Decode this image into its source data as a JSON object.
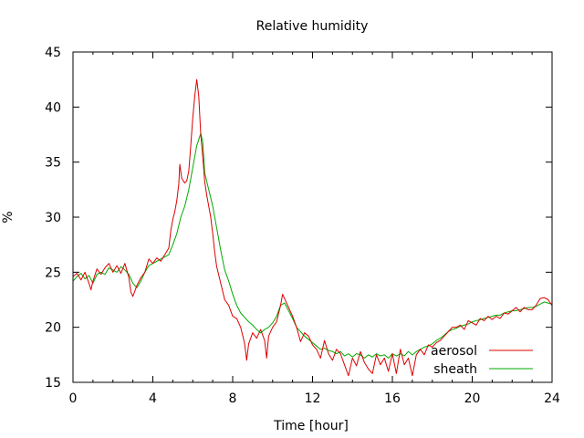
{
  "chart_data": {
    "type": "line",
    "title": "Relative humidity",
    "xlabel": "Time [hour]",
    "ylabel": "%",
    "xlim": [
      0,
      24
    ],
    "ylim": [
      15,
      45
    ],
    "x_ticks": [
      0,
      4,
      8,
      12,
      16,
      20,
      24
    ],
    "y_ticks": [
      15,
      20,
      25,
      30,
      35,
      40,
      45
    ],
    "grid": false,
    "legend_position": "bottom-right",
    "series": [
      {
        "name": "aerosol",
        "color": "#dd0000",
        "points": [
          [
            0.0,
            24.6
          ],
          [
            0.2,
            24.9
          ],
          [
            0.4,
            24.3
          ],
          [
            0.6,
            25.0
          ],
          [
            0.8,
            24.0
          ],
          [
            0.9,
            23.4
          ],
          [
            1.0,
            24.2
          ],
          [
            1.2,
            25.3
          ],
          [
            1.4,
            24.8
          ],
          [
            1.6,
            25.4
          ],
          [
            1.8,
            25.8
          ],
          [
            2.0,
            25.0
          ],
          [
            2.2,
            25.6
          ],
          [
            2.4,
            24.9
          ],
          [
            2.6,
            25.8
          ],
          [
            2.8,
            24.5
          ],
          [
            2.9,
            23.2
          ],
          [
            3.0,
            22.8
          ],
          [
            3.2,
            23.8
          ],
          [
            3.4,
            24.5
          ],
          [
            3.6,
            25.0
          ],
          [
            3.8,
            26.2
          ],
          [
            4.0,
            25.8
          ],
          [
            4.2,
            26.3
          ],
          [
            4.4,
            26.0
          ],
          [
            4.6,
            26.6
          ],
          [
            4.8,
            27.2
          ],
          [
            4.9,
            28.8
          ],
          [
            5.0,
            29.8
          ],
          [
            5.1,
            30.5
          ],
          [
            5.2,
            31.5
          ],
          [
            5.3,
            33.0
          ],
          [
            5.35,
            34.8
          ],
          [
            5.45,
            33.5
          ],
          [
            5.6,
            33.1
          ],
          [
            5.7,
            33.3
          ],
          [
            5.8,
            34.2
          ],
          [
            5.9,
            36.5
          ],
          [
            6.0,
            39.0
          ],
          [
            6.1,
            41.0
          ],
          [
            6.2,
            42.5
          ],
          [
            6.3,
            41.0
          ],
          [
            6.4,
            37.5
          ],
          [
            6.5,
            35.5
          ],
          [
            6.6,
            33.2
          ],
          [
            6.7,
            32.0
          ],
          [
            6.8,
            31.0
          ],
          [
            6.9,
            30.0
          ],
          [
            7.0,
            28.5
          ],
          [
            7.1,
            26.8
          ],
          [
            7.2,
            25.5
          ],
          [
            7.4,
            24.0
          ],
          [
            7.6,
            22.5
          ],
          [
            7.8,
            22.0
          ],
          [
            8.0,
            21.0
          ],
          [
            8.2,
            20.8
          ],
          [
            8.4,
            20.0
          ],
          [
            8.6,
            18.5
          ],
          [
            8.7,
            17.0
          ],
          [
            8.8,
            18.5
          ],
          [
            9.0,
            19.5
          ],
          [
            9.2,
            19.0
          ],
          [
            9.4,
            19.8
          ],
          [
            9.6,
            18.8
          ],
          [
            9.7,
            17.2
          ],
          [
            9.8,
            19.2
          ],
          [
            10.0,
            20.0
          ],
          [
            10.2,
            20.5
          ],
          [
            10.4,
            22.0
          ],
          [
            10.5,
            23.0
          ],
          [
            10.6,
            22.6
          ],
          [
            10.8,
            21.8
          ],
          [
            11.0,
            21.0
          ],
          [
            11.2,
            20.0
          ],
          [
            11.4,
            18.7
          ],
          [
            11.6,
            19.5
          ],
          [
            11.8,
            19.2
          ],
          [
            12.0,
            18.4
          ],
          [
            12.2,
            18.0
          ],
          [
            12.4,
            17.2
          ],
          [
            12.6,
            18.8
          ],
          [
            12.8,
            17.6
          ],
          [
            13.0,
            17.0
          ],
          [
            13.2,
            18.0
          ],
          [
            13.4,
            17.6
          ],
          [
            13.6,
            16.6
          ],
          [
            13.8,
            15.6
          ],
          [
            14.0,
            17.2
          ],
          [
            14.2,
            16.5
          ],
          [
            14.4,
            17.8
          ],
          [
            14.6,
            16.8
          ],
          [
            14.8,
            16.2
          ],
          [
            15.0,
            15.8
          ],
          [
            15.2,
            17.5
          ],
          [
            15.4,
            16.6
          ],
          [
            15.6,
            17.2
          ],
          [
            15.8,
            16.0
          ],
          [
            16.0,
            17.6
          ],
          [
            16.2,
            15.8
          ],
          [
            16.4,
            18.0
          ],
          [
            16.6,
            16.6
          ],
          [
            16.8,
            17.2
          ],
          [
            17.0,
            15.6
          ],
          [
            17.2,
            17.5
          ],
          [
            17.4,
            18.0
          ],
          [
            17.6,
            17.5
          ],
          [
            17.8,
            18.4
          ],
          [
            18.0,
            18.2
          ],
          [
            18.2,
            18.6
          ],
          [
            18.4,
            18.8
          ],
          [
            18.6,
            19.2
          ],
          [
            18.8,
            19.6
          ],
          [
            19.0,
            20.0
          ],
          [
            19.2,
            20.0
          ],
          [
            19.4,
            20.2
          ],
          [
            19.6,
            19.8
          ],
          [
            19.8,
            20.6
          ],
          [
            20.0,
            20.4
          ],
          [
            20.2,
            20.2
          ],
          [
            20.4,
            20.8
          ],
          [
            20.6,
            20.6
          ],
          [
            20.8,
            21.0
          ],
          [
            21.0,
            20.7
          ],
          [
            21.2,
            21.0
          ],
          [
            21.4,
            20.8
          ],
          [
            21.6,
            21.3
          ],
          [
            21.8,
            21.2
          ],
          [
            22.0,
            21.5
          ],
          [
            22.2,
            21.8
          ],
          [
            22.4,
            21.4
          ],
          [
            22.6,
            21.8
          ],
          [
            22.8,
            21.6
          ],
          [
            23.0,
            21.6
          ],
          [
            23.2,
            22.0
          ],
          [
            23.4,
            22.6
          ],
          [
            23.6,
            22.7
          ],
          [
            23.8,
            22.5
          ],
          [
            24.0,
            22.0
          ]
        ]
      },
      {
        "name": "sheath",
        "color": "#00aa00",
        "points": [
          [
            0.0,
            24.2
          ],
          [
            0.2,
            24.6
          ],
          [
            0.4,
            24.9
          ],
          [
            0.6,
            24.4
          ],
          [
            0.8,
            24.7
          ],
          [
            1.0,
            24.0
          ],
          [
            1.2,
            24.8
          ],
          [
            1.4,
            25.0
          ],
          [
            1.6,
            24.8
          ],
          [
            1.8,
            25.4
          ],
          [
            2.0,
            25.2
          ],
          [
            2.2,
            25.0
          ],
          [
            2.4,
            25.5
          ],
          [
            2.6,
            25.2
          ],
          [
            2.8,
            24.8
          ],
          [
            3.0,
            24.0
          ],
          [
            3.2,
            23.6
          ],
          [
            3.4,
            24.2
          ],
          [
            3.6,
            25.0
          ],
          [
            3.8,
            25.6
          ],
          [
            4.0,
            25.8
          ],
          [
            4.2,
            26.0
          ],
          [
            4.4,
            26.2
          ],
          [
            4.6,
            26.4
          ],
          [
            4.8,
            26.6
          ],
          [
            5.0,
            27.5
          ],
          [
            5.2,
            28.5
          ],
          [
            5.4,
            30.0
          ],
          [
            5.6,
            31.0
          ],
          [
            5.8,
            32.5
          ],
          [
            6.0,
            34.5
          ],
          [
            6.2,
            36.5
          ],
          [
            6.4,
            37.6
          ],
          [
            6.5,
            36.8
          ],
          [
            6.6,
            34.0
          ],
          [
            6.8,
            32.5
          ],
          [
            7.0,
            31.0
          ],
          [
            7.2,
            29.0
          ],
          [
            7.4,
            27.0
          ],
          [
            7.6,
            25.2
          ],
          [
            7.8,
            24.2
          ],
          [
            8.0,
            23.0
          ],
          [
            8.2,
            22.0
          ],
          [
            8.4,
            21.3
          ],
          [
            8.6,
            20.9
          ],
          [
            8.8,
            20.5
          ],
          [
            9.0,
            20.2
          ],
          [
            9.2,
            19.8
          ],
          [
            9.4,
            19.5
          ],
          [
            9.6,
            19.8
          ],
          [
            9.8,
            20.0
          ],
          [
            10.0,
            20.4
          ],
          [
            10.2,
            21.0
          ],
          [
            10.4,
            22.0
          ],
          [
            10.6,
            22.2
          ],
          [
            10.8,
            21.5
          ],
          [
            11.0,
            20.8
          ],
          [
            11.2,
            20.0
          ],
          [
            11.4,
            19.6
          ],
          [
            11.6,
            19.2
          ],
          [
            11.8,
            18.9
          ],
          [
            12.0,
            18.6
          ],
          [
            12.2,
            18.3
          ],
          [
            12.4,
            18.0
          ],
          [
            12.6,
            18.1
          ],
          [
            12.8,
            17.9
          ],
          [
            13.0,
            17.8
          ],
          [
            13.2,
            17.6
          ],
          [
            13.4,
            17.8
          ],
          [
            13.6,
            17.4
          ],
          [
            13.8,
            17.6
          ],
          [
            14.0,
            17.3
          ],
          [
            14.2,
            17.6
          ],
          [
            14.4,
            17.5
          ],
          [
            14.6,
            17.2
          ],
          [
            14.8,
            17.5
          ],
          [
            15.0,
            17.3
          ],
          [
            15.2,
            17.6
          ],
          [
            15.4,
            17.4
          ],
          [
            15.6,
            17.5
          ],
          [
            15.8,
            17.2
          ],
          [
            16.0,
            17.6
          ],
          [
            16.2,
            17.4
          ],
          [
            16.4,
            17.6
          ],
          [
            16.6,
            17.4
          ],
          [
            16.8,
            17.8
          ],
          [
            17.0,
            17.5
          ],
          [
            17.2,
            17.8
          ],
          [
            17.4,
            18.0
          ],
          [
            17.6,
            18.2
          ],
          [
            17.8,
            18.3
          ],
          [
            18.0,
            18.5
          ],
          [
            18.2,
            18.8
          ],
          [
            18.4,
            19.0
          ],
          [
            18.6,
            19.3
          ],
          [
            18.8,
            19.6
          ],
          [
            19.0,
            19.8
          ],
          [
            19.2,
            19.9
          ],
          [
            19.4,
            20.1
          ],
          [
            19.6,
            20.2
          ],
          [
            19.8,
            20.3
          ],
          [
            20.0,
            20.5
          ],
          [
            20.2,
            20.6
          ],
          [
            20.4,
            20.7
          ],
          [
            20.6,
            20.8
          ],
          [
            20.8,
            20.9
          ],
          [
            21.0,
            21.0
          ],
          [
            21.2,
            21.1
          ],
          [
            21.4,
            21.1
          ],
          [
            21.6,
            21.3
          ],
          [
            21.8,
            21.4
          ],
          [
            22.0,
            21.5
          ],
          [
            22.2,
            21.5
          ],
          [
            22.4,
            21.6
          ],
          [
            22.6,
            21.7
          ],
          [
            22.8,
            21.8
          ],
          [
            23.0,
            21.8
          ],
          [
            23.2,
            21.9
          ],
          [
            23.4,
            22.1
          ],
          [
            23.6,
            22.3
          ],
          [
            23.8,
            22.2
          ],
          [
            24.0,
            22.1
          ]
        ]
      }
    ]
  }
}
